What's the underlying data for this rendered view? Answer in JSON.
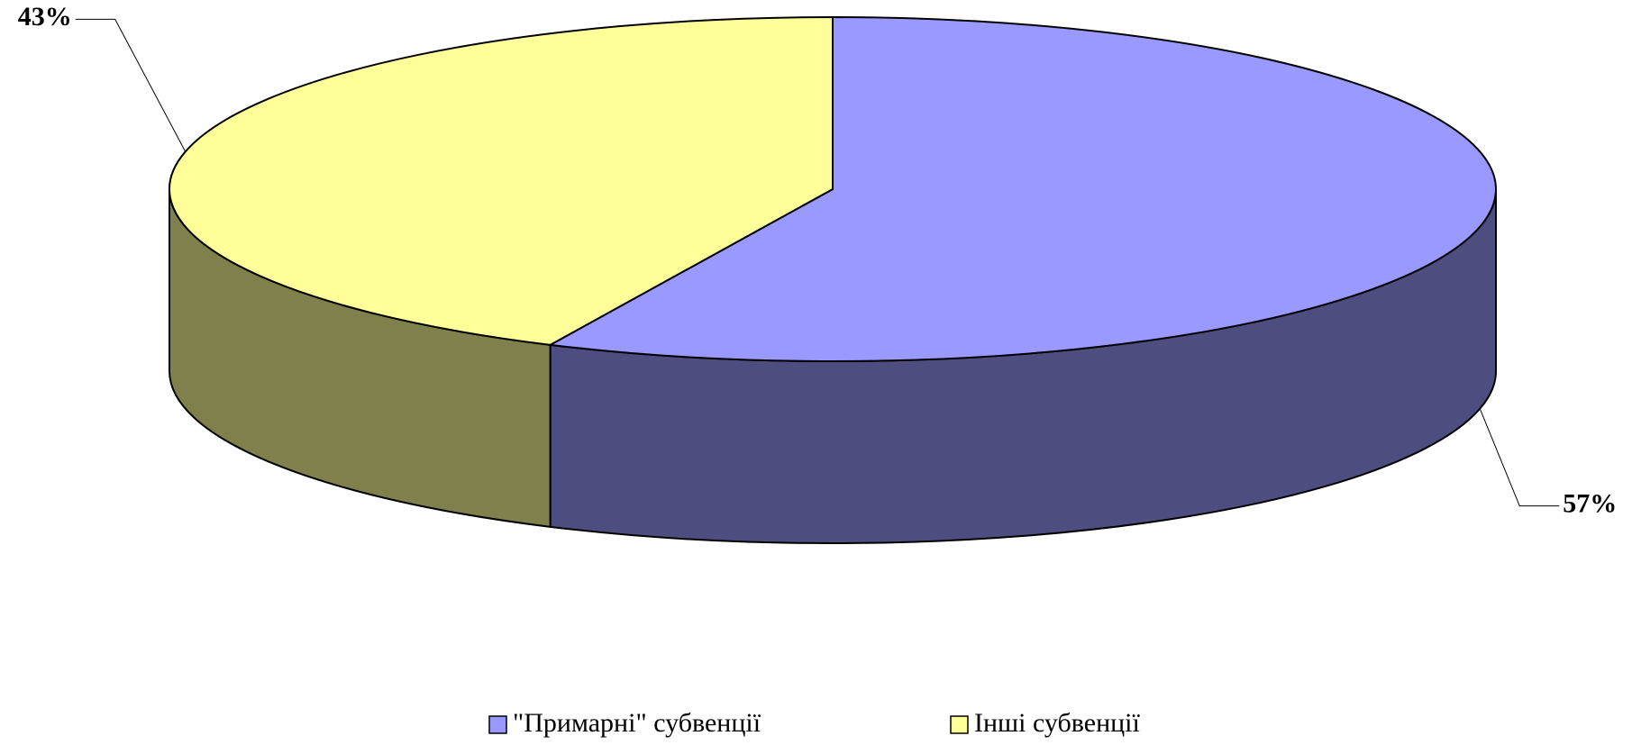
{
  "chart_data": {
    "type": "pie3d",
    "categories": [
      "\"Примарні\" субвенції",
      "Інші субвенції"
    ],
    "values": [
      57,
      43
    ],
    "value_labels": [
      "57%",
      "43%"
    ],
    "colors": [
      "#9999ff",
      "#ffff99"
    ],
    "legend": "bottom"
  }
}
